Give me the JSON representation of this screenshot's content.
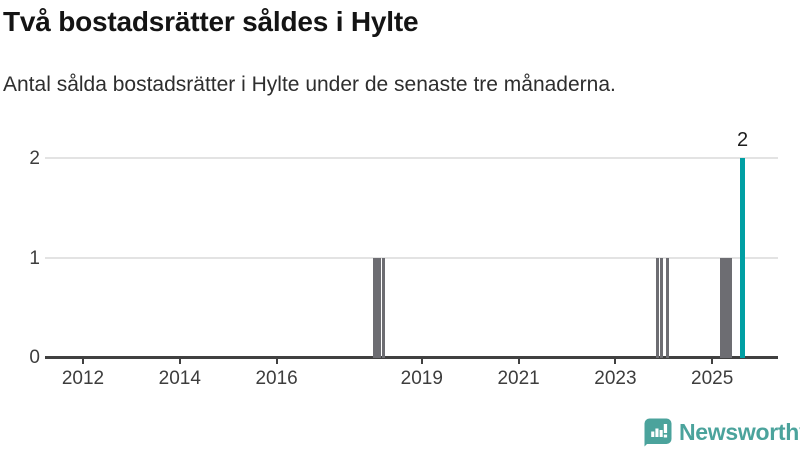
{
  "header": {
    "title": "Två bostadsrätter såldes i Hylte",
    "subtitle": "Antal sålda bostadsrätter i Hylte under de senaste tre månaderna."
  },
  "chart_data": {
    "type": "bar",
    "title": "Två bostadsrätter såldes i Hylte",
    "subtitle": "Antal sålda bostadsrätter i Hylte under de senaste tre månaderna.",
    "xlabel": "",
    "ylabel": "",
    "ylim": [
      0,
      2
    ],
    "y_ticks": [
      "0",
      "1",
      "2"
    ],
    "x_range_years": [
      2011.2,
      2026.4
    ],
    "x_ticks": [
      {
        "year": 2012,
        "label": "2012"
      },
      {
        "year": 2014,
        "label": "2014"
      },
      {
        "year": 2016,
        "label": "2016"
      },
      {
        "year": 2019,
        "label": "2019"
      },
      {
        "year": 2021,
        "label": "2021"
      },
      {
        "year": 2023,
        "label": "2023"
      },
      {
        "year": 2025,
        "label": "2025"
      }
    ],
    "grid": "horizontal gridlines at y=1 and y=2, dark baseline at y=0",
    "legend": "none",
    "bars": [
      {
        "year": 2018.0,
        "value": 1,
        "highlight": false
      },
      {
        "year": 2018.08,
        "value": 1,
        "highlight": false
      },
      {
        "year": 2018.17,
        "value": 1,
        "highlight": false
      },
      {
        "year": 2023.83,
        "value": 1,
        "highlight": false
      },
      {
        "year": 2023.92,
        "value": 1,
        "highlight": false
      },
      {
        "year": 2024.04,
        "value": 1,
        "highlight": false
      },
      {
        "year": 2025.17,
        "value": 1,
        "highlight": false
      },
      {
        "year": 2025.25,
        "value": 1,
        "highlight": false
      },
      {
        "year": 2025.33,
        "value": 1,
        "highlight": false
      },
      {
        "year": 2025.58,
        "value": 2,
        "highlight": true,
        "label": "2"
      }
    ],
    "colors": {
      "bar": "#6d6d72",
      "highlight": "#009fa3",
      "grid": "#e3e3e3",
      "axis": "#404040",
      "tick_text": "#3d3d3d"
    }
  },
  "footer": {
    "brand": "Newsworthy",
    "brand_color": "#4ba39c"
  }
}
